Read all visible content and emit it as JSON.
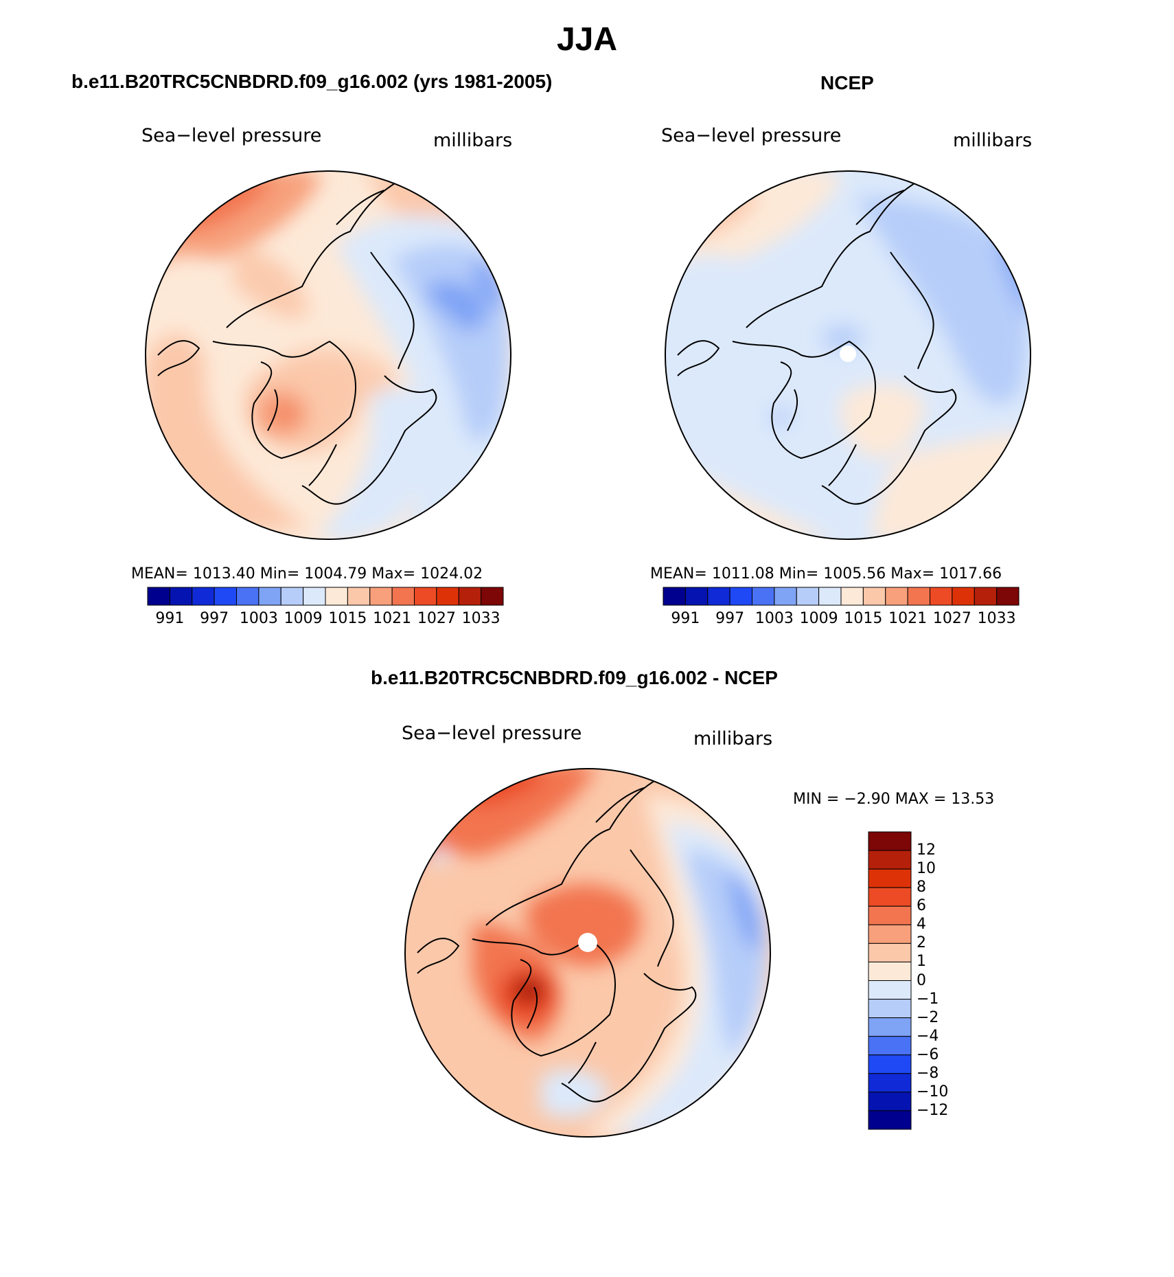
{
  "figure": {
    "title": "JJA",
    "panel_left_title": "b.e11.B20TRC5CNBDRD.f09_g16.002 (yrs 1981-2005)",
    "panel_right_title": "NCEP",
    "panel_diff_title": "b.e11.B20TRC5CNBDRD.f09_g16.002 - NCEP"
  },
  "panels": {
    "model": {
      "variable": "Sea−level pressure",
      "units": "millibars",
      "stats": "MEAN=  1013.40   Min=  1004.79   Max=  1024.02"
    },
    "ncep": {
      "variable": "Sea−level pressure",
      "units": "millibars",
      "stats": "MEAN=  1011.08   Min=  1005.56   Max=  1017.66"
    },
    "diff": {
      "variable": "Sea−level pressure",
      "units": "millibars",
      "stats": "MIN =   −2.90  MAX =   13.53"
    }
  },
  "colorbar_abs": {
    "tick_labels": [
      "991",
      "997",
      "1003",
      "1009",
      "1015",
      "1021",
      "1027",
      "1033"
    ],
    "colors": [
      "#00008f",
      "#0514b0",
      "#0f2ad6",
      "#1f49f5",
      "#4a72f5",
      "#7fa3f5",
      "#b6cdf9",
      "#dce9fb",
      "#fde9d8",
      "#fbc8aa",
      "#f7a07b",
      "#f2754f",
      "#ec4b25",
      "#dd3208",
      "#b5200a",
      "#7d0606"
    ]
  },
  "colorbar_diff": {
    "tick_labels": [
      "12",
      "10",
      "8",
      "6",
      "4",
      "2",
      "1",
      "0",
      "−1",
      "−2",
      "−4",
      "−6",
      "−8",
      "−10",
      "−12"
    ],
    "colors": [
      "#7d0606",
      "#b5200a",
      "#dd3208",
      "#ec4b25",
      "#f2754f",
      "#f7a07b",
      "#fbc8aa",
      "#fde9d8",
      "#dce9fb",
      "#b6cdf9",
      "#7fa3f5",
      "#4a72f5",
      "#1f49f5",
      "#0f2ad6",
      "#0514b0",
      "#00008f"
    ]
  },
  "chart_data": [
    {
      "type": "heatmap",
      "title": "b.e11.B20TRC5CNBDRD.f09_g16.002 (yrs 1981-2005)",
      "variable": "Sea-level pressure",
      "units": "millibars",
      "projection": "north polar stereographic",
      "mean": 1013.4,
      "min": 1004.79,
      "max": 1024.02,
      "contour_levels": [
        991,
        997,
        1003,
        1009,
        1015,
        1021,
        1027,
        1033
      ]
    },
    {
      "type": "heatmap",
      "title": "NCEP",
      "variable": "Sea-level pressure",
      "units": "millibars",
      "projection": "north polar stereographic",
      "mean": 1011.08,
      "min": 1005.56,
      "max": 1017.66,
      "contour_levels": [
        991,
        997,
        1003,
        1009,
        1015,
        1021,
        1027,
        1033
      ]
    },
    {
      "type": "heatmap",
      "title": "b.e11.B20TRC5CNBDRD.f09_g16.002 - NCEP",
      "variable": "Sea-level pressure",
      "units": "millibars",
      "projection": "north polar stereographic",
      "min": -2.9,
      "max": 13.53,
      "contour_levels": [
        -12,
        -10,
        -8,
        -6,
        -4,
        -2,
        -1,
        0,
        1,
        2,
        4,
        6,
        8,
        10,
        12
      ]
    }
  ]
}
